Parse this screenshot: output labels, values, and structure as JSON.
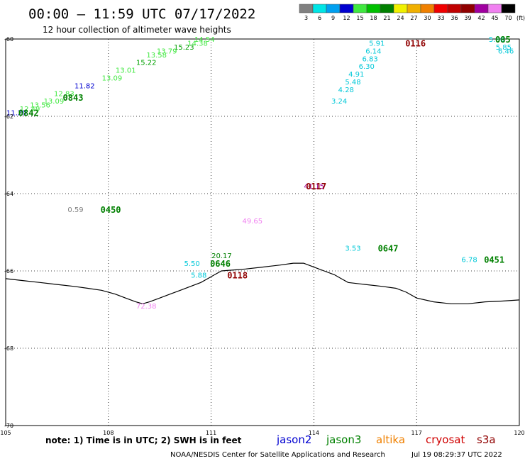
{
  "title": "00:00 – 11:59 UTC 07/17/2022",
  "subtitle": "12 hour collection of altimeter wave heights",
  "colorbar": {
    "labels": [
      "3",
      "6",
      "9",
      "12",
      "15",
      "18",
      "21",
      "24",
      "27",
      "30",
      "33",
      "36",
      "39",
      "42",
      "45",
      "70"
    ],
    "unit": "(ft)",
    "colors": [
      "#808080",
      "#00e5e5",
      "#00a0f0",
      "#0000d0",
      "#40e840",
      "#00c000",
      "#008000",
      "#f0f000",
      "#f0b000",
      "#f08000",
      "#f00000",
      "#c00000",
      "#900000",
      "#a000a0",
      "#f080f0",
      "#000000"
    ]
  },
  "map": {
    "lon_range": [
      105,
      120
    ],
    "lat_range": [
      -70,
      -60
    ],
    "x_ticks": [
      "105",
      "108",
      "111",
      "114",
      "117",
      "120"
    ],
    "y_ticks": [
      "-60",
      "-62",
      "-64",
      "-66",
      "-68",
      "-70"
    ],
    "coastline_name": "Antarctic coastline"
  },
  "observations": [
    {
      "text": "14.54",
      "color": "#40e840",
      "lon": 110.8,
      "lat": -60.0
    },
    {
      "text": "14.38",
      "color": "#40e840",
      "lon": 110.6,
      "lat": -60.1
    },
    {
      "text": "15.23",
      "color": "#00a000",
      "lon": 110.2,
      "lat": -60.2
    },
    {
      "text": "13.79",
      "color": "#40e840",
      "lon": 109.7,
      "lat": -60.3
    },
    {
      "text": "13.58",
      "color": "#40e840",
      "lon": 109.4,
      "lat": -60.4
    },
    {
      "text": "15.22",
      "color": "#00a000",
      "lon": 109.1,
      "lat": -60.6
    },
    {
      "text": "13.01",
      "color": "#40e840",
      "lon": 108.5,
      "lat": -60.8
    },
    {
      "text": "13.09",
      "color": "#40e840",
      "lon": 108.1,
      "lat": -61.0
    },
    {
      "text": "11.82",
      "color": "#0000d0",
      "lon": 107.3,
      "lat": -61.2
    },
    {
      "text": "12.83",
      "color": "#40e840",
      "lon": 106.7,
      "lat": -61.4
    },
    {
      "text": "13.09",
      "color": "#40e840",
      "lon": 106.4,
      "lat": -61.6
    },
    {
      "text": "13.56",
      "color": "#40e840",
      "lon": 106.0,
      "lat": -61.7
    },
    {
      "text": "12.49",
      "color": "#40e840",
      "lon": 105.7,
      "lat": -61.8
    },
    {
      "text": "11.29",
      "color": "#0000d0",
      "lon": 105.0,
      "lat": -61.9
    },
    {
      "text": "5.91",
      "color": "#00c8d8",
      "lon": 115.9,
      "lat": -60.1
    },
    {
      "text": "6.14",
      "color": "#00c8d8",
      "lon": 115.8,
      "lat": -60.3
    },
    {
      "text": "6.83",
      "color": "#00c8d8",
      "lon": 115.7,
      "lat": -60.5
    },
    {
      "text": "6.30",
      "color": "#00c8d8",
      "lon": 115.6,
      "lat": -60.7
    },
    {
      "text": "4.91",
      "color": "#00c8d8",
      "lon": 115.3,
      "lat": -60.9
    },
    {
      "text": "5.48",
      "color": "#00c8d8",
      "lon": 115.2,
      "lat": -61.1
    },
    {
      "text": "4.28",
      "color": "#00c8d8",
      "lon": 115.0,
      "lat": -61.3
    },
    {
      "text": "3.24",
      "color": "#00c8d8",
      "lon": 114.8,
      "lat": -61.6
    },
    {
      "text": "5.88",
      "color": "#00c8d8",
      "lon": 119.4,
      "lat": -60.0
    },
    {
      "text": "5.85",
      "color": "#00c8d8",
      "lon": 119.6,
      "lat": -60.2
    },
    {
      "text": "6.46",
      "color": "#00c8d8",
      "lon": 119.8,
      "lat": -60.3
    },
    {
      "text": "41.15",
      "color": "#a000a0",
      "lon": 114.0,
      "lat": -63.8
    },
    {
      "text": "0.59",
      "color": "#808080",
      "lon": 107.1,
      "lat": -64.4
    },
    {
      "text": "49.65",
      "color": "#f080f0",
      "lon": 112.2,
      "lat": -64.7
    },
    {
      "text": "3.53",
      "color": "#00c8d8",
      "lon": 115.2,
      "lat": -65.4
    },
    {
      "text": "20.17",
      "color": "#008000",
      "lon": 111.3,
      "lat": -65.6
    },
    {
      "text": "5.50",
      "color": "#00c8d8",
      "lon": 110.5,
      "lat": -65.8
    },
    {
      "text": "5.88",
      "color": "#00c8d8",
      "lon": 110.7,
      "lat": -66.1
    },
    {
      "text": "6.78",
      "color": "#00c8d8",
      "lon": 118.6,
      "lat": -65.7
    },
    {
      "text": "72.38",
      "color": "#f080f0",
      "lon": 109.1,
      "lat": -66.9
    }
  ],
  "time_labels": [
    {
      "text": "0116",
      "color": "#900000",
      "lon": 117.0,
      "lat": -60.1
    },
    {
      "text": "085",
      "color": "#008000",
      "lon": 120.0,
      "lat": -60.0
    },
    {
      "text": "0842",
      "color": "#008000",
      "lon": 105.7,
      "lat": -61.9
    },
    {
      "text": "0843",
      "color": "#008000",
      "lon": 107.0,
      "lat": -61.5
    },
    {
      "text": "0117",
      "color": "#900000",
      "lon": 114.1,
      "lat": -63.8
    },
    {
      "text": "0450",
      "color": "#008000",
      "lon": 108.1,
      "lat": -64.4
    },
    {
      "text": "0647",
      "color": "#008000",
      "lon": 116.2,
      "lat": -65.4
    },
    {
      "text": "0451",
      "color": "#008000",
      "lon": 119.3,
      "lat": -65.7
    },
    {
      "text": "0646",
      "color": "#008000",
      "lon": 111.3,
      "lat": -65.8
    },
    {
      "text": "0118",
      "color": "#900000",
      "lon": 111.8,
      "lat": -66.1
    }
  ],
  "coastline": [
    [
      105.0,
      -66.2
    ],
    [
      105.5,
      -66.25
    ],
    [
      106.0,
      -66.3
    ],
    [
      106.5,
      -66.35
    ],
    [
      107.0,
      -66.4
    ],
    [
      107.4,
      -66.45
    ],
    [
      107.8,
      -66.5
    ],
    [
      108.2,
      -66.6
    ],
    [
      108.5,
      -66.7
    ],
    [
      108.8,
      -66.8
    ],
    [
      109.0,
      -66.85
    ],
    [
      109.2,
      -66.8
    ],
    [
      109.5,
      -66.7
    ],
    [
      109.8,
      -66.6
    ],
    [
      110.1,
      -66.5
    ],
    [
      110.4,
      -66.4
    ],
    [
      110.7,
      -66.3
    ],
    [
      110.9,
      -66.2
    ],
    [
      111.1,
      -66.1
    ],
    [
      111.3,
      -66.0
    ],
    [
      111.6,
      -65.98
    ],
    [
      112.0,
      -65.95
    ],
    [
      112.5,
      -65.9
    ],
    [
      113.0,
      -65.85
    ],
    [
      113.4,
      -65.8
    ],
    [
      113.7,
      -65.8
    ],
    [
      114.0,
      -65.9
    ],
    [
      114.3,
      -66.0
    ],
    [
      114.6,
      -66.1
    ],
    [
      114.8,
      -66.2
    ],
    [
      115.0,
      -66.3
    ],
    [
      115.5,
      -66.35
    ],
    [
      116.0,
      -66.4
    ],
    [
      116.4,
      -66.45
    ],
    [
      116.7,
      -66.55
    ],
    [
      117.0,
      -66.7
    ],
    [
      117.5,
      -66.8
    ],
    [
      118.0,
      -66.85
    ],
    [
      118.5,
      -66.85
    ],
    [
      119.0,
      -66.8
    ],
    [
      119.5,
      -66.78
    ],
    [
      120.0,
      -66.75
    ]
  ],
  "note": "note: 1) Time is in UTC; 2) SWH is in feet",
  "legend": [
    {
      "text": "jason2",
      "color": "#0000d0"
    },
    {
      "text": "jason3",
      "color": "#008000"
    },
    {
      "text": "altika",
      "color": "#f08000"
    },
    {
      "text": "cryosat",
      "color": "#d00000"
    },
    {
      "text": "s3a",
      "color": "#900000"
    }
  ],
  "credit": "NOAA/NESDIS Center for Satellite Applications and Research",
  "timestamp": "Jul 19 08:29:37 UTC 2022"
}
